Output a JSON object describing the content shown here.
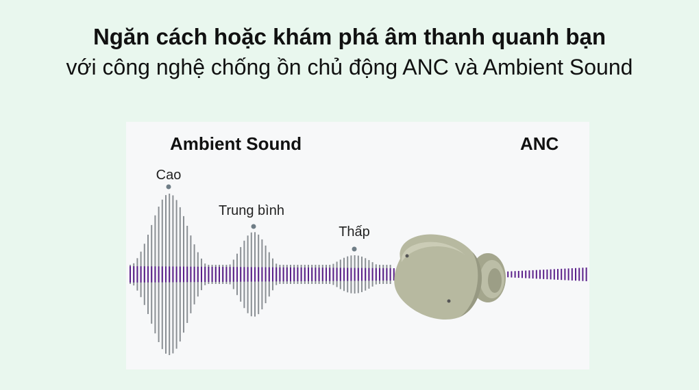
{
  "header": {
    "title": "Ngăn cách hoặc khám phá âm thanh quanh bạn",
    "subtitle": "với công nghệ chống ồn chủ động ANC và Ambient Sound"
  },
  "modes": {
    "ambient": "Ambient Sound",
    "anc": "ANC"
  },
  "levels": {
    "high": "Cao",
    "medium": "Trung bình",
    "low": "Thấp"
  },
  "colors": {
    "background": "#e9f7ee",
    "panel": "#f7f8f9",
    "ambient_wave": "#8a8f94",
    "anc_wave": "#5a1f8a",
    "earbud": "#b3b59c"
  }
}
